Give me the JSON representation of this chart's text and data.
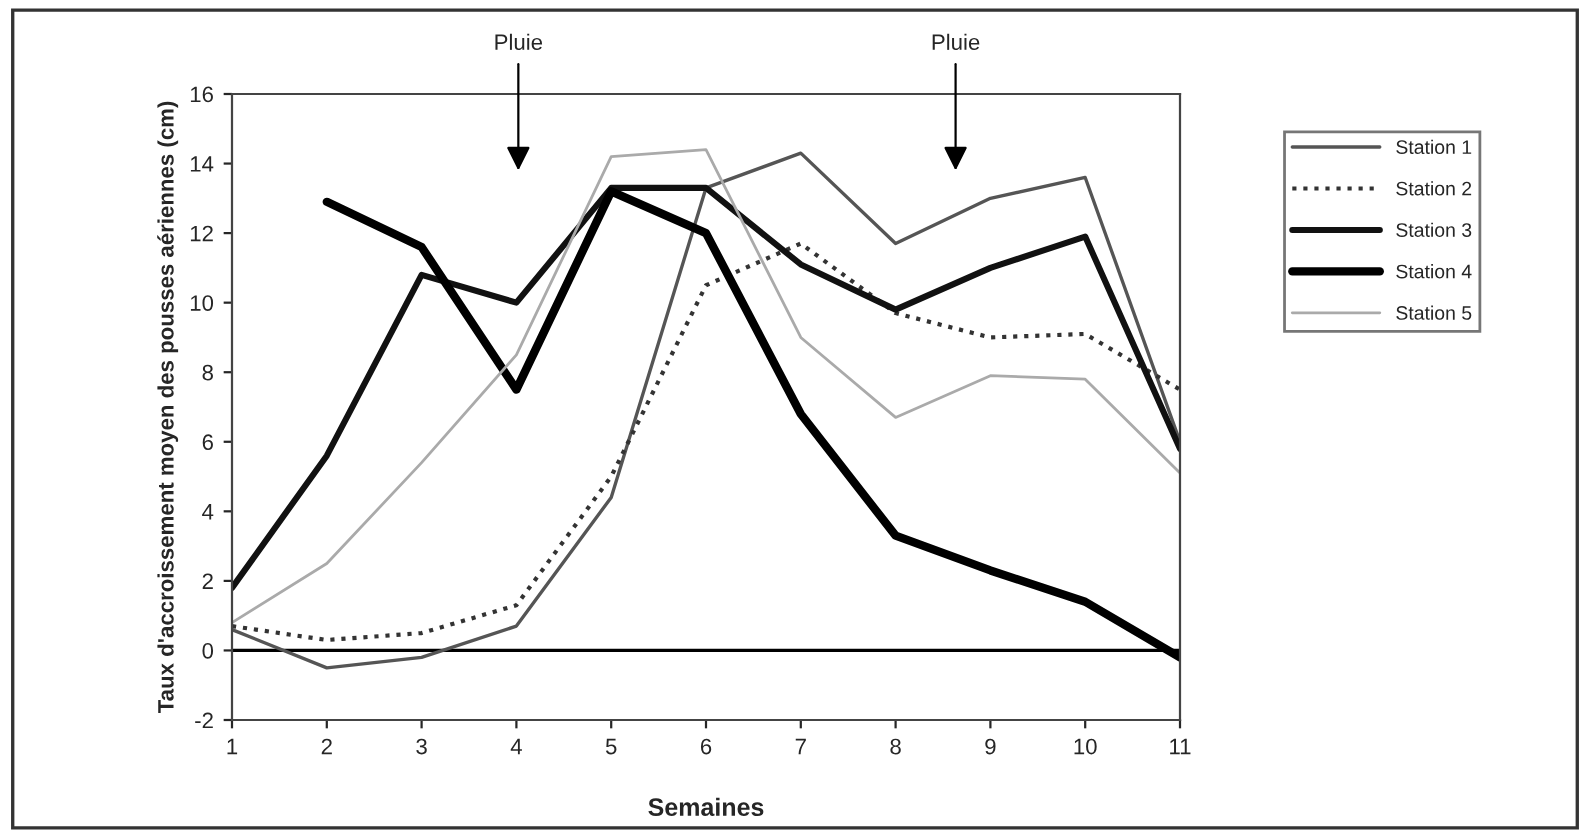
{
  "chart_data": {
    "type": "line",
    "xlabel": "Semaines",
    "ylabel": "Taux d'accroissement moyen des pousses aériennes (cm)",
    "x": [
      1,
      2,
      3,
      4,
      5,
      6,
      7,
      8,
      9,
      10,
      11
    ],
    "series": [
      {
        "name": "Station 1",
        "color": "#555555",
        "line_style": "solid",
        "values": [
          0.6,
          -0.5,
          -0.2,
          0.7,
          4.4,
          13.3,
          14.3,
          11.7,
          13.0,
          13.6,
          6.0
        ]
      },
      {
        "name": "Station 2",
        "color": "#333333",
        "line_style": "dotted",
        "values": [
          0.7,
          0.3,
          0.5,
          1.3,
          5.0,
          10.5,
          11.7,
          9.7,
          9.0,
          9.1,
          7.5
        ]
      },
      {
        "name": "Station 3",
        "color": "#111111",
        "line_style": "solid",
        "values": [
          1.8,
          5.6,
          10.8,
          10.0,
          13.3,
          13.3,
          11.1,
          9.8,
          11.0,
          11.9,
          5.8
        ]
      },
      {
        "name": "Station 4",
        "color": "#000000",
        "line_style": "solid",
        "values": [
          null,
          12.9,
          11.6,
          7.5,
          13.2,
          12.0,
          6.8,
          3.3,
          2.3,
          1.4,
          -0.2
        ]
      },
      {
        "name": "Station 5",
        "color": "#aaaaaa",
        "line_style": "solid",
        "values": [
          0.8,
          2.5,
          5.4,
          8.5,
          14.2,
          14.4,
          9.0,
          6.7,
          7.9,
          7.8,
          5.1
        ]
      }
    ],
    "annotations": [
      "Pluie",
      "Pluie"
    ],
    "ref_lines": [
      {
        "axis": "y",
        "value": 0,
        "color": "#000000"
      }
    ],
    "xlim": [
      1,
      11
    ],
    "xticks": [
      1,
      2,
      3,
      4,
      5,
      6,
      7,
      8,
      9,
      10,
      11
    ],
    "ylim": [
      -2,
      16
    ],
    "yticks": [
      -2,
      0,
      2,
      4,
      6,
      8,
      10,
      12,
      14,
      16
    ],
    "grid": false,
    "legend": "right",
    "marker": "none"
  }
}
